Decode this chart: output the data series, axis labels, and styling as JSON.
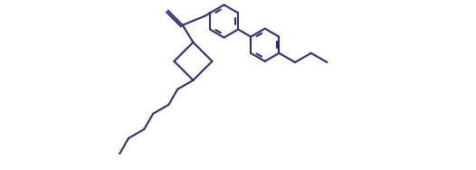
{
  "bg_color": "#ffffff",
  "line_color": "#2d2d6b",
  "line_width": 1.5,
  "figsize": [
    5.26,
    1.88
  ],
  "dpi": 100
}
